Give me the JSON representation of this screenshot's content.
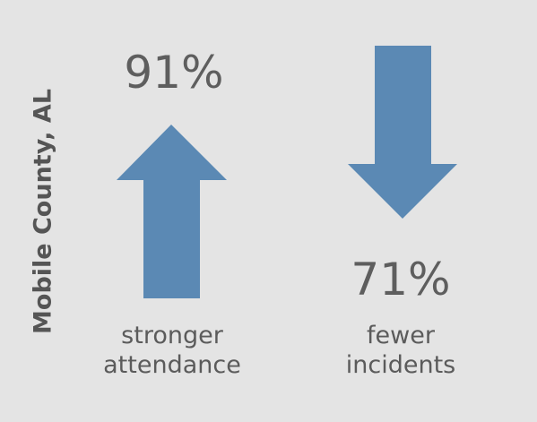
{
  "side_label": "Mobile County, AL",
  "colors": {
    "background": "#e4e4e4",
    "arrow": "#5b89b4",
    "text": "#5b5b5b"
  },
  "stats": [
    {
      "value": "91%",
      "direction": "up",
      "icon": "arrow-up-icon",
      "caption_lines": [
        "stronger",
        "attendance"
      ]
    },
    {
      "value": "71%",
      "direction": "down",
      "icon": "arrow-down-icon",
      "caption_lines": [
        "fewer",
        "incidents"
      ]
    }
  ]
}
